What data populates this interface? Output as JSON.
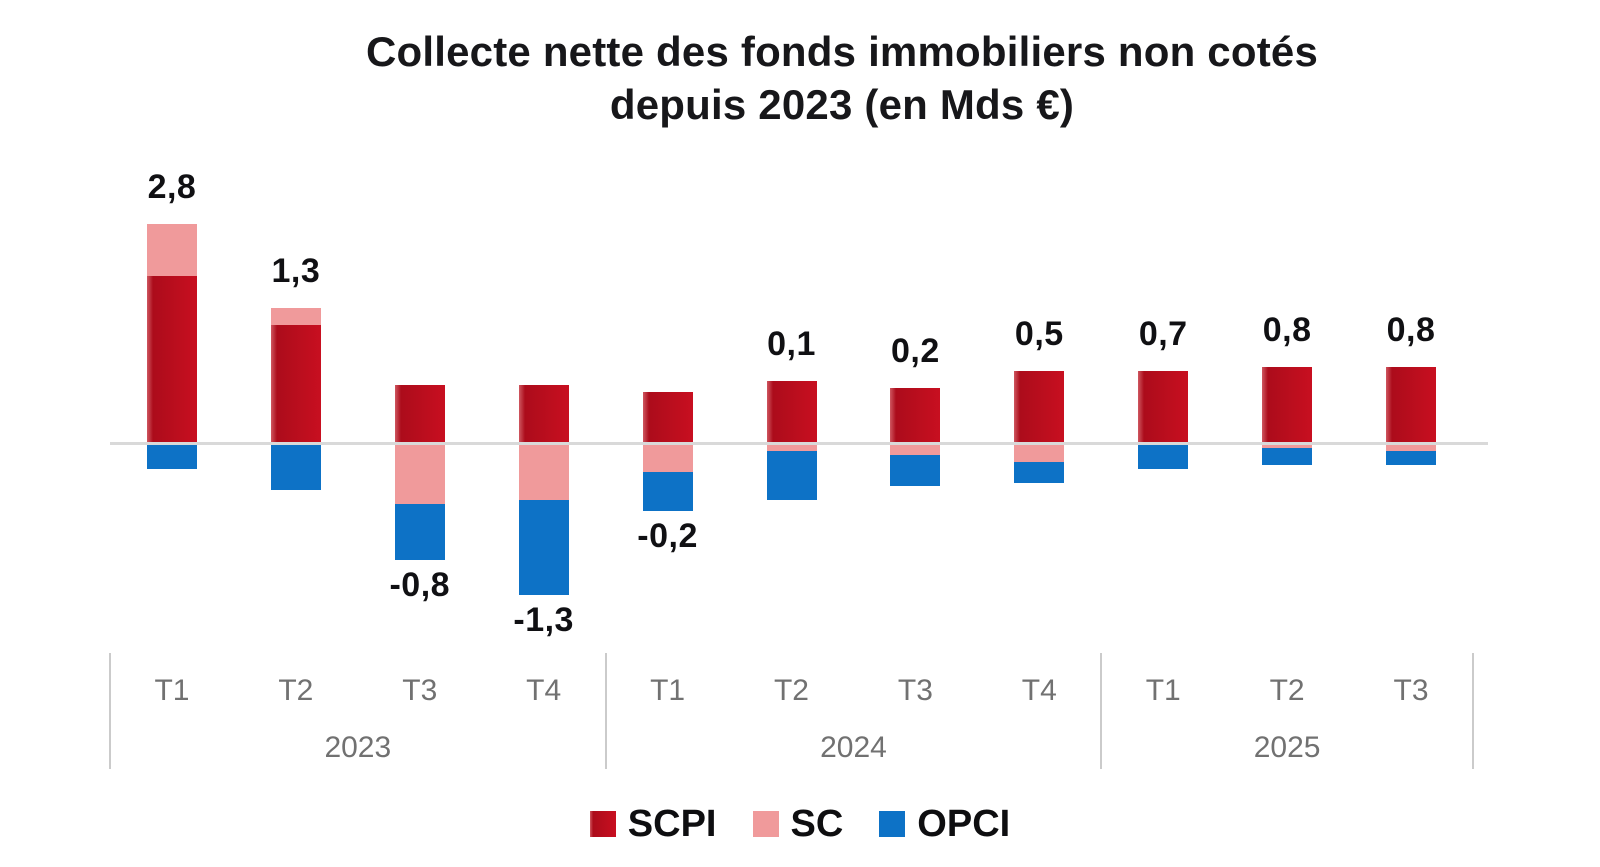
{
  "title": {
    "line1": "Collecte nette des fonds immobiliers non cotés",
    "line2": "depuis 2023 (en Mds €)"
  },
  "chart_data": {
    "type": "bar",
    "stacked": true,
    "unit": "Mds €",
    "title": "Collecte nette des fonds immobiliers non cotés depuis 2023 (en Mds €)",
    "categories": [
      "T1",
      "T2",
      "T3",
      "T4",
      "T1",
      "T2",
      "T3",
      "T4",
      "T1",
      "T2",
      "T3"
    ],
    "year_groups": [
      {
        "label": "2023",
        "count": 4
      },
      {
        "label": "2024",
        "count": 4
      },
      {
        "label": "2025",
        "count": 3
      }
    ],
    "series": [
      {
        "name": "SCPI",
        "color": "#bf0e1e",
        "gradient": [
          "#cf5760",
          "#ac0c1b",
          "#c80f20"
        ],
        "values": [
          2.4,
          1.7,
          0.85,
          0.85,
          0.75,
          0.9,
          0.8,
          1.05,
          1.05,
          1.1,
          1.1
        ]
      },
      {
        "name": "SC",
        "color": "#f09a9b",
        "values": [
          0.75,
          0.25,
          -0.85,
          -0.8,
          -0.4,
          -0.1,
          -0.15,
          -0.25,
          0,
          -0.05,
          -0.1
        ]
      },
      {
        "name": "OPCI",
        "color": "#0d72c6",
        "values": [
          -0.35,
          -0.65,
          -0.8,
          -1.35,
          -0.55,
          -0.7,
          -0.45,
          -0.3,
          -0.35,
          -0.25,
          -0.2
        ]
      }
    ],
    "net_values": [
      2.8,
      1.3,
      -0.8,
      -1.3,
      -0.2,
      0.1,
      0.2,
      0.5,
      0.7,
      0.8,
      0.8
    ],
    "net_labels": [
      "2,8",
      "1,3",
      "-0,8",
      "-1,3",
      "-0,2",
      "0,1",
      "0,2",
      "0,5",
      "0,7",
      "0,8",
      "0,8"
    ],
    "ylim": [
      -2.2,
      3.3
    ],
    "grid": false,
    "y_axis": "hidden",
    "legend_position": "bottom",
    "colors": {
      "baseline": "#d9d9d9",
      "group_divider": "#cbcbcb",
      "axis_text": "#717171",
      "net_label_text": "#101013"
    }
  }
}
